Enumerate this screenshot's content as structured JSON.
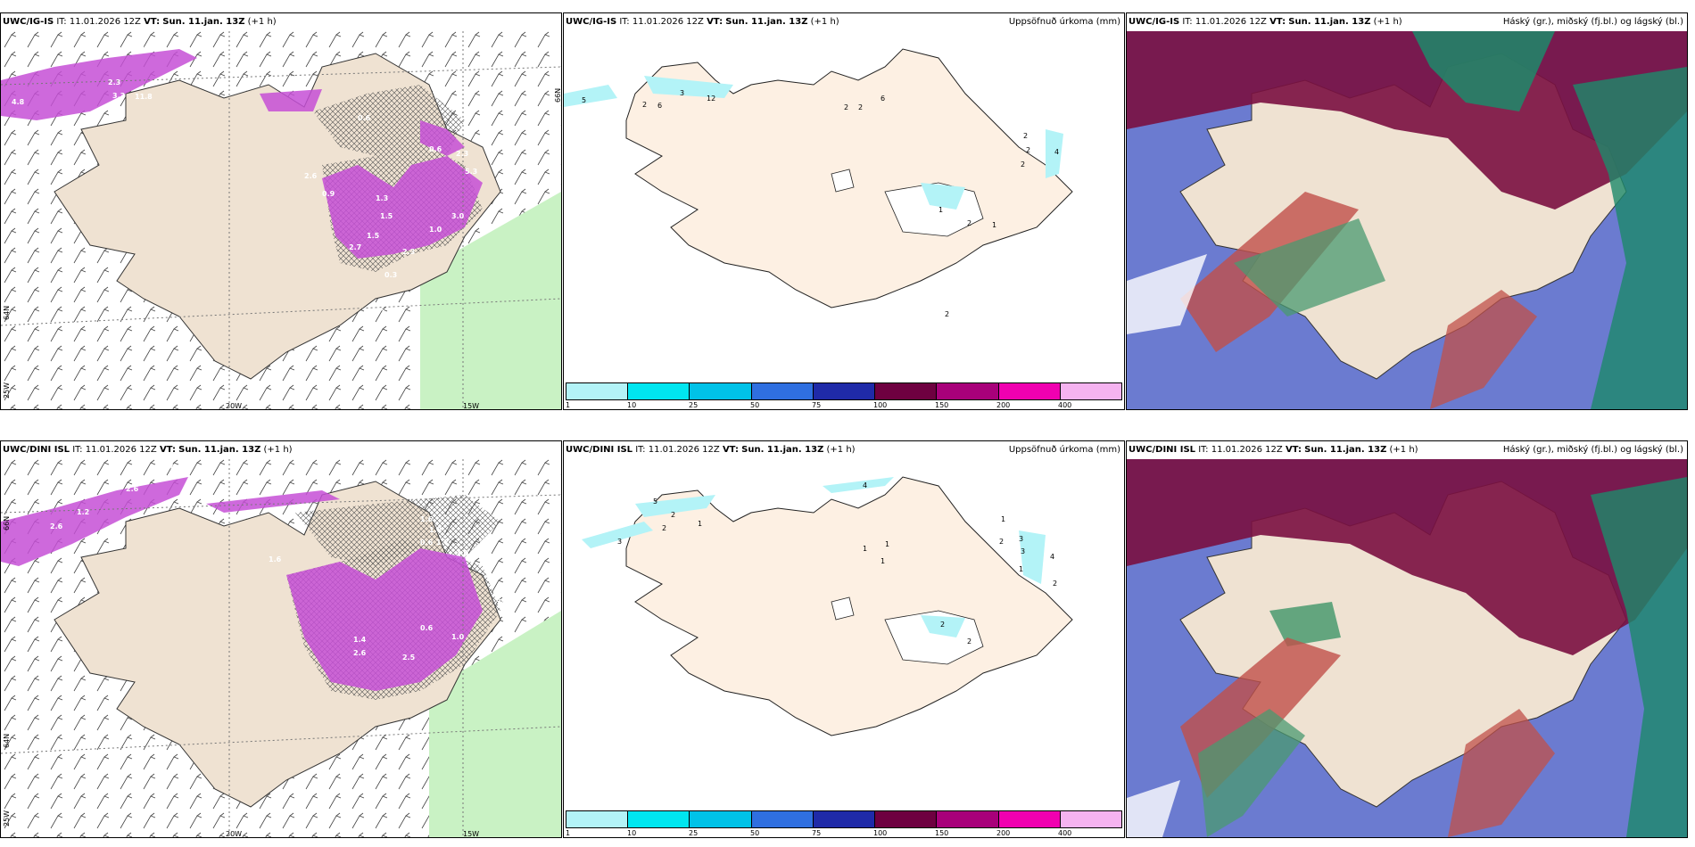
{
  "panels": [
    {
      "model": "UWC/IG-IS",
      "it_label": "IT:",
      "it": "11.01.2026 12Z",
      "vt_label": "VT:",
      "vt": "Sun. 11.jan. 13Z",
      "lead": "(+1 h)",
      "title_right": ""
    },
    {
      "model": "UWC/IG-IS",
      "it_label": "IT:",
      "it": "11.01.2026 12Z",
      "vt_label": "VT:",
      "vt": "Sun. 11.jan. 13Z",
      "lead": "(+1 h)",
      "title_right": "Uppsöfnuð úrkoma (mm)"
    },
    {
      "model": "UWC/IG-IS",
      "it_label": "IT:",
      "it": "11.01.2026 12Z",
      "vt_label": "VT:",
      "vt": "Sun. 11.jan. 13Z",
      "lead": "(+1 h)",
      "title_right": "Háský (gr.), miðský (fj.bl.) og lágský (bl.)"
    },
    {
      "model": "UWC/DINI ISL",
      "it_label": "IT:",
      "it": "11.01.2026 12Z",
      "vt_label": "VT:",
      "vt": "Sun. 11.jan. 13Z",
      "lead": "(+1 h)",
      "title_right": ""
    },
    {
      "model": "UWC/DINI ISL",
      "it_label": "IT:",
      "it": "11.01.2026 12Z",
      "vt_label": "VT:",
      "vt": "Sun. 11.jan. 13Z",
      "lead": "(+1 h)",
      "title_right": "Uppsöfnuð úrkoma (mm)"
    },
    {
      "model": "UWC/DINI ISL",
      "it_label": "IT:",
      "it": "11.01.2026 12Z",
      "vt_label": "VT:",
      "vt": "Sun. 11.jan. 13Z",
      "lead": "(+1 h)",
      "title_right": "Háský (gr.), miðský (fj.bl.) og lágský (bl.)"
    }
  ],
  "axes": {
    "lon_20w": "20W",
    "lon_15w": "15W",
    "lat_66n": "66N",
    "lat_64n": "64N",
    "lat_25w": "25W"
  },
  "precip_colorbar": {
    "ticks": [
      "1",
      "10",
      "25",
      "50",
      "75",
      "100",
      "150",
      "200",
      "400"
    ],
    "colors": [
      "#b3f3f7",
      "#00e6f0",
      "#00c2e8",
      "#2f6fe0",
      "#1f2aa8",
      "#6e0040",
      "#a8007a",
      "#f000b0",
      "#f5b3f0"
    ]
  },
  "precip_labels_top": [
    "5",
    "2",
    "6",
    "3",
    "12",
    "2",
    "2",
    "6",
    "2",
    "2",
    "2",
    "4",
    "1",
    "2",
    "1",
    "2"
  ],
  "precip_labels_bottom": [
    "5",
    "3",
    "2",
    "2",
    "1",
    "4",
    "1",
    "1",
    "1",
    "1",
    "2",
    "3",
    "3",
    "4",
    "1",
    "2",
    "2",
    "2"
  ],
  "wind_values_top": [
    "0.5",
    "2.3",
    "3.3",
    "11.8",
    "4.8",
    "0.6",
    "2.6",
    "0.9",
    "1.3",
    "1.5",
    "2.7",
    "2.3",
    "1.5",
    "0.3",
    "2.5",
    "5.3",
    "0.6",
    "2.3",
    "1.0",
    "3.0"
  ],
  "wind_values_bottom": [
    "0.4",
    "2.6",
    "1.2",
    "2.6",
    "1.6",
    "1.8",
    "0.6",
    "1.7",
    "3.0",
    "3.1",
    "2.6",
    "2.5",
    "1.4",
    "1.0",
    "1.6",
    "0.6",
    "3.4"
  ],
  "colors": {
    "land": "#efe2d2",
    "land_precip": "#fdf0e3",
    "ocean": "#ffffff",
    "wind_precip": "#b34cc7",
    "wind_precip_light": "#e28cef",
    "cloud_high": "#7a1040",
    "cloud_mid": "#1d8a6a",
    "cloud_low": "#3a4fc0"
  }
}
